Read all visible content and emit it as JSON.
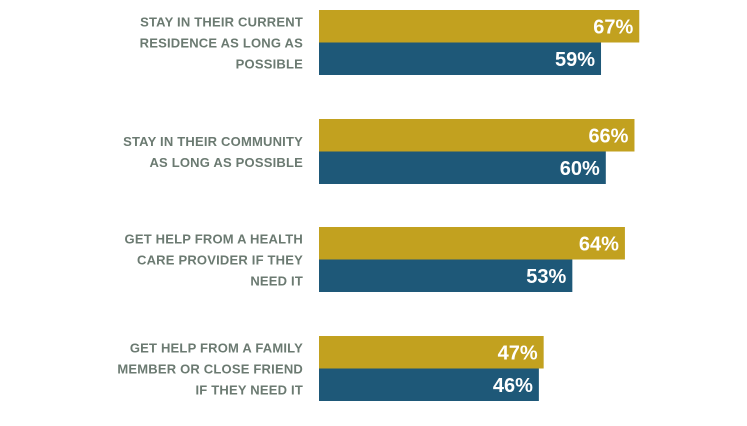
{
  "colors": {
    "series_a": "#c2a11f",
    "series_b": "#1e5878",
    "label_text": "#6b7a71",
    "value_text": "#ffffff"
  },
  "chart_data": {
    "type": "bar",
    "orientation": "horizontal",
    "categories": [
      [
        "STAY IN THEIR CURRENT",
        "RESIDENCE AS LONG AS",
        "POSSIBLE"
      ],
      [
        "STAY IN THEIR COMMUNITY",
        "AS LONG AS POSSIBLE"
      ],
      [
        "GET HELP FROM A HEALTH",
        "CARE PROVIDER IF THEY",
        "NEED IT"
      ],
      [
        "GET HELP FROM A FAMILY",
        "MEMBER OR CLOSE FRIEND",
        "IF THEY NEED IT"
      ]
    ],
    "series": [
      {
        "values": [
          67,
          66,
          64,
          47
        ],
        "labels": [
          "67%",
          "66%",
          "64%",
          "47%"
        ]
      },
      {
        "values": [
          59,
          60,
          53,
          46
        ],
        "labels": [
          "59%",
          "60%",
          "53%",
          "46%"
        ]
      }
    ],
    "xlim": [
      0,
      100
    ],
    "grid": false,
    "legend": "none"
  }
}
